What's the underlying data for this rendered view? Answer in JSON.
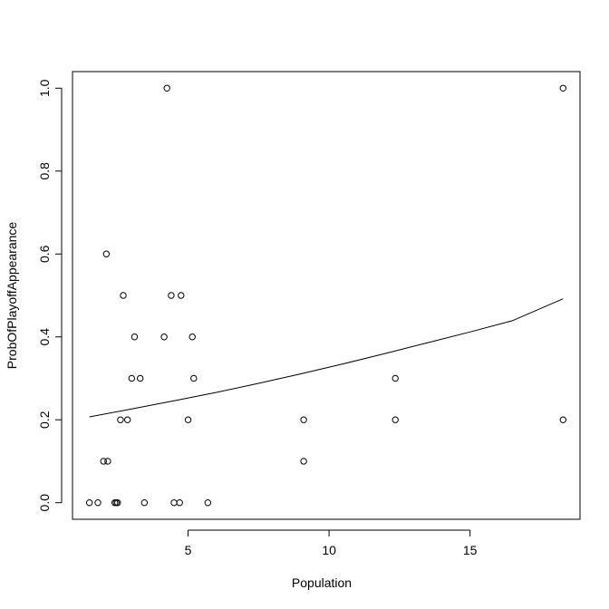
{
  "chart_data": {
    "type": "scatter",
    "title": "",
    "xlabel": "Population",
    "ylabel": "ProbOfPlayoffAppearance",
    "xlim": [
      0.9,
      18.9
    ],
    "ylim": [
      -0.04,
      1.04
    ],
    "xticks": [
      5,
      10,
      15
    ],
    "xtick_labels": [
      "5",
      "10",
      "15"
    ],
    "yticks": [
      0.0,
      0.2,
      0.4,
      0.6,
      0.8,
      1.0
    ],
    "ytick_labels": [
      "0.0",
      "0.2",
      "0.4",
      "0.6",
      "0.8",
      "1.0"
    ],
    "grid": false,
    "legend": "none",
    "marker": "open-circle",
    "points": [
      {
        "x": 1.5,
        "y": 0.0
      },
      {
        "x": 1.8,
        "y": 0.0
      },
      {
        "x": 2.0,
        "y": 0.1
      },
      {
        "x": 2.15,
        "y": 0.1
      },
      {
        "x": 2.1,
        "y": 0.6
      },
      {
        "x": 2.4,
        "y": 0.0
      },
      {
        "x": 2.45,
        "y": 0.0
      },
      {
        "x": 2.5,
        "y": 0.0
      },
      {
        "x": 2.6,
        "y": 0.2
      },
      {
        "x": 2.7,
        "y": 0.5
      },
      {
        "x": 2.85,
        "y": 0.2
      },
      {
        "x": 3.0,
        "y": 0.3
      },
      {
        "x": 3.1,
        "y": 0.4
      },
      {
        "x": 3.3,
        "y": 0.3
      },
      {
        "x": 3.45,
        "y": 0.0
      },
      {
        "x": 4.15,
        "y": 0.4
      },
      {
        "x": 4.25,
        "y": 1.0
      },
      {
        "x": 4.4,
        "y": 0.5
      },
      {
        "x": 4.5,
        "y": 0.0
      },
      {
        "x": 4.7,
        "y": 0.0
      },
      {
        "x": 4.75,
        "y": 0.5
      },
      {
        "x": 5.0,
        "y": 0.2
      },
      {
        "x": 5.15,
        "y": 0.4
      },
      {
        "x": 5.2,
        "y": 0.3
      },
      {
        "x": 5.7,
        "y": 0.0
      },
      {
        "x": 9.1,
        "y": 0.2
      },
      {
        "x": 9.1,
        "y": 0.1
      },
      {
        "x": 12.35,
        "y": 0.3
      },
      {
        "x": 12.35,
        "y": 0.2
      },
      {
        "x": 18.3,
        "y": 1.0
      },
      {
        "x": 18.3,
        "y": 0.2
      }
    ],
    "fit_line": {
      "x": [
        1.5,
        3.0,
        4.5,
        6.0,
        7.5,
        9.0,
        10.5,
        12.0,
        13.5,
        15.0,
        16.5,
        18.3
      ],
      "y": [
        0.207,
        0.226,
        0.246,
        0.266,
        0.288,
        0.311,
        0.335,
        0.36,
        0.386,
        0.412,
        0.439,
        0.492
      ]
    }
  }
}
